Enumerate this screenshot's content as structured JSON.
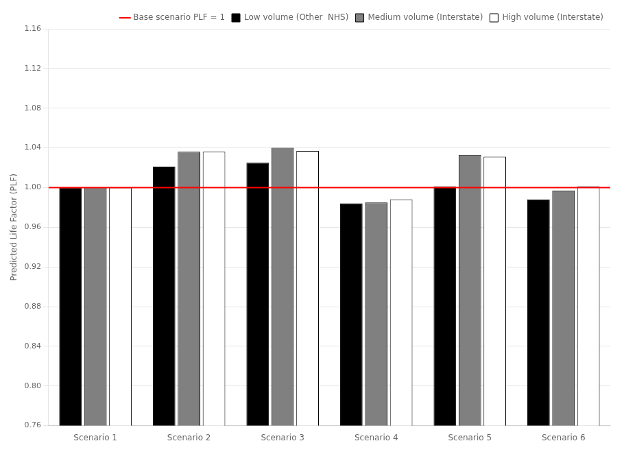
{
  "chart_data": {
    "type": "bar",
    "categories": [
      "Scenario 1",
      "Scenario 2",
      "Scenario 3",
      "Scenario 4",
      "Scenario 5",
      "Scenario 6"
    ],
    "series": [
      {
        "name": "Low volume (Other  NHS)",
        "color": "#000000",
        "values": [
          1.0,
          1.021,
          1.025,
          0.984,
          1.001,
          0.988
        ]
      },
      {
        "name": "Medium volume (Interstate)",
        "color": "#808080",
        "values": [
          1.0,
          1.036,
          1.04,
          0.985,
          1.033,
          0.997
        ]
      },
      {
        "name": "High volume (Interstate)",
        "color": "#ffffff",
        "values": [
          1.0,
          1.036,
          1.037,
          0.988,
          1.031,
          1.001
        ]
      }
    ],
    "baseline": {
      "value": 1.0,
      "label": "Base scenario PLF = 1",
      "color": "#ff0000"
    },
    "ylabel": "Predicted Life Factor (PLF)",
    "ylim": [
      0.76,
      1.16
    ],
    "yticks": [
      0.76,
      {
        "value": 0.8,
        "label": "0.80"
      },
      0.84,
      0.88,
      0.92,
      0.96,
      {
        "value": 1.0,
        "label": "1.00"
      },
      1.04,
      1.08,
      1.12,
      1.16
    ],
    "grid": true,
    "legend": "upper right"
  }
}
